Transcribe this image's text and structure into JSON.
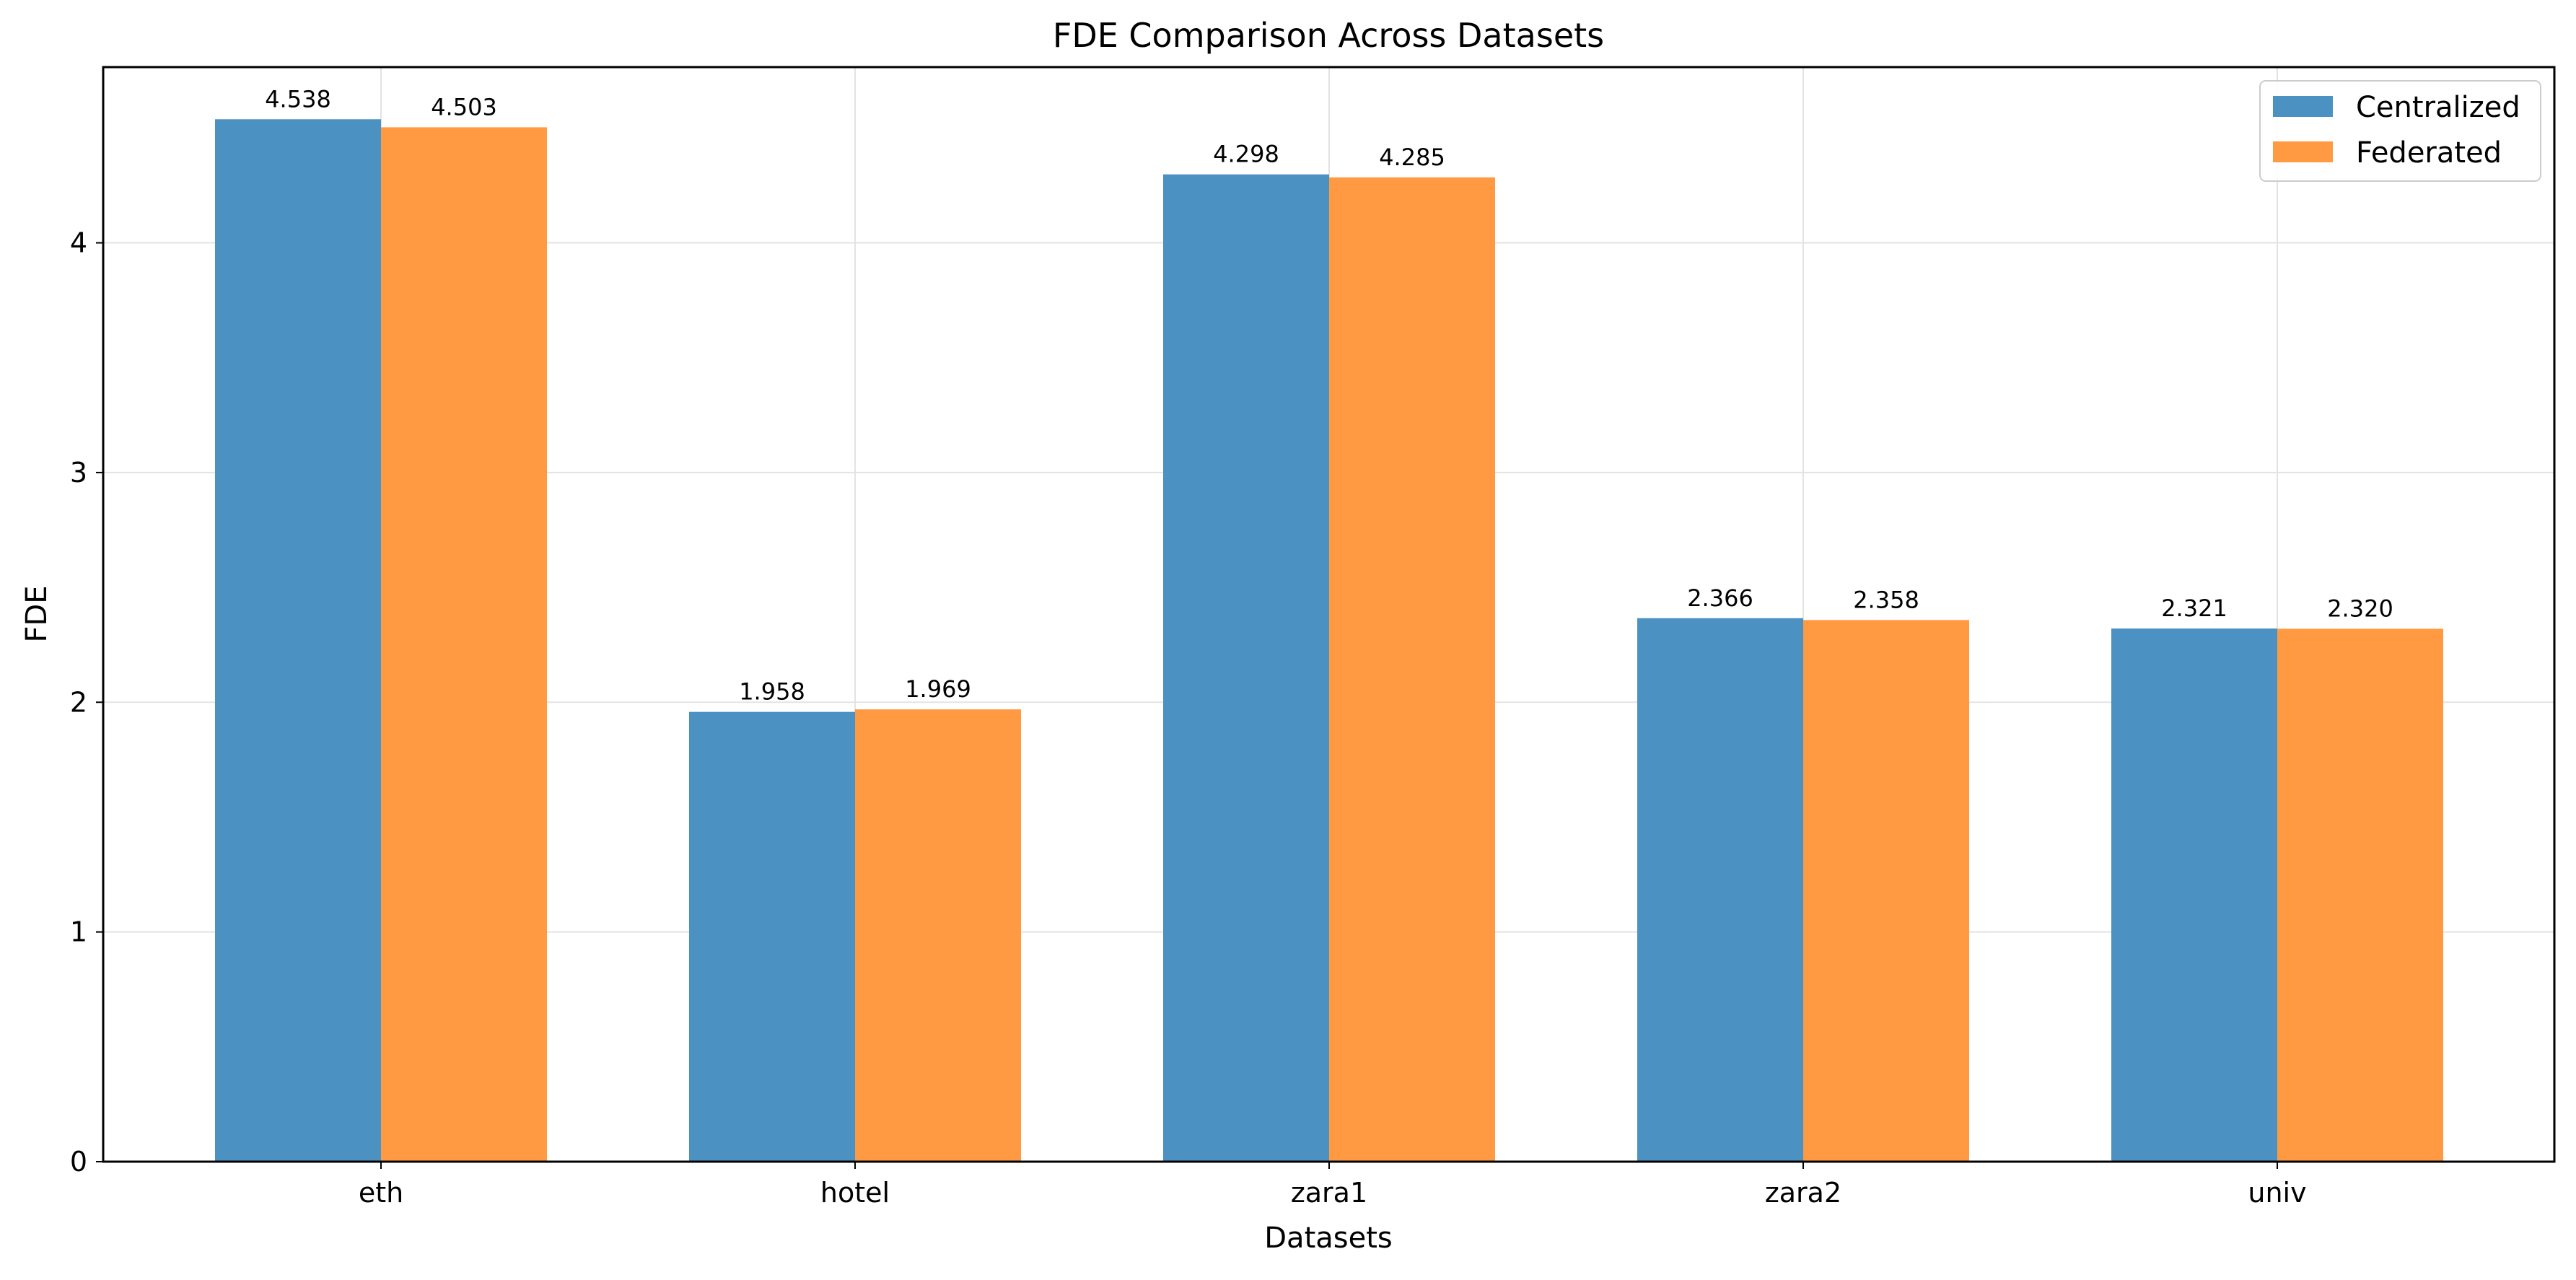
{
  "chart_data": {
    "type": "bar",
    "title": "FDE Comparison Across Datasets",
    "xlabel": "Datasets",
    "ylabel": "FDE",
    "categories": [
      "eth",
      "hotel",
      "zara1",
      "zara2",
      "univ"
    ],
    "series": [
      {
        "name": "Centralized",
        "color": "#4b91c2",
        "values": [
          4.538,
          1.958,
          4.298,
          2.366,
          2.321
        ],
        "labels": [
          "4.538",
          "1.958",
          "4.298",
          "2.366",
          "2.321"
        ]
      },
      {
        "name": "Federated",
        "color": "#ff9a42",
        "values": [
          4.503,
          1.969,
          4.285,
          2.358,
          2.32
        ],
        "labels": [
          "4.503",
          "1.969",
          "4.285",
          "2.358",
          "2.320"
        ]
      }
    ],
    "yticks": [
      0,
      1,
      2,
      3,
      4
    ],
    "ylim": [
      0,
      4.765
    ],
    "grid": true,
    "legend_position": "top-right"
  }
}
